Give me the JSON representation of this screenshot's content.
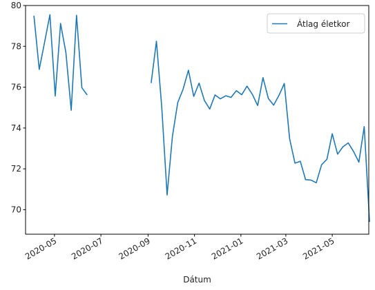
{
  "chart_data": {
    "type": "line",
    "title": "",
    "xlabel": "Dátum",
    "ylabel": "",
    "legend_position": "top-right",
    "grid": false,
    "xlim": [
      "2020-03-24",
      "2021-06-18"
    ],
    "ylim": [
      68.8,
      80.0
    ],
    "x_ticks": [
      "2020-05-01",
      "2020-07-01",
      "2020-09-01",
      "2020-11-01",
      "2021-01-01",
      "2021-03-01",
      "2021-05-01"
    ],
    "x_tick_labels": [
      "2020-05",
      "2020-07",
      "2020-09",
      "2020-11",
      "2021-01",
      "2021-03",
      "2021-05"
    ],
    "y_ticks": [
      70,
      72,
      74,
      76,
      78,
      80
    ],
    "y_tick_labels": [
      "70",
      "72",
      "74",
      "76",
      "78",
      "80"
    ],
    "series": [
      {
        "name": "Átlag életkor",
        "color": "#1f77b4",
        "points": [
          [
            "2020-04-04",
            79.5
          ],
          [
            "2020-04-11",
            76.87
          ],
          [
            "2020-04-18",
            78.2
          ],
          [
            "2020-04-25",
            79.55
          ],
          [
            "2020-05-02",
            75.57
          ],
          [
            "2020-05-09",
            79.12
          ],
          [
            "2020-05-16",
            77.7
          ],
          [
            "2020-05-23",
            74.87
          ],
          [
            "2020-05-30",
            79.52
          ],
          [
            "2020-06-06",
            75.97
          ],
          [
            "2020-06-13",
            75.62
          ],
          [
            "2020-06-20",
            null
          ],
          [
            "2020-08-29",
            null
          ],
          [
            "2020-09-05",
            76.2
          ],
          [
            "2020-09-12",
            78.25
          ],
          [
            "2020-09-19",
            75.0
          ],
          [
            "2020-09-26",
            70.72
          ],
          [
            "2020-10-03",
            73.6
          ],
          [
            "2020-10-10",
            75.25
          ],
          [
            "2020-10-17",
            75.9
          ],
          [
            "2020-10-24",
            76.83
          ],
          [
            "2020-10-31",
            75.55
          ],
          [
            "2020-11-07",
            76.2
          ],
          [
            "2020-11-14",
            75.35
          ],
          [
            "2020-11-21",
            74.93
          ],
          [
            "2020-11-28",
            75.62
          ],
          [
            "2020-12-05",
            75.43
          ],
          [
            "2020-12-12",
            75.58
          ],
          [
            "2020-12-19",
            75.5
          ],
          [
            "2020-12-26",
            75.83
          ],
          [
            "2021-01-02",
            75.63
          ],
          [
            "2021-01-09",
            76.05
          ],
          [
            "2021-01-16",
            75.65
          ],
          [
            "2021-01-23",
            75.1
          ],
          [
            "2021-01-30",
            76.47
          ],
          [
            "2021-02-06",
            75.45
          ],
          [
            "2021-02-13",
            75.12
          ],
          [
            "2021-02-20",
            75.6
          ],
          [
            "2021-02-27",
            76.18
          ],
          [
            "2021-03-06",
            73.47
          ],
          [
            "2021-03-13",
            72.28
          ],
          [
            "2021-03-20",
            72.37
          ],
          [
            "2021-03-27",
            71.47
          ],
          [
            "2021-04-03",
            71.45
          ],
          [
            "2021-04-10",
            71.32
          ],
          [
            "2021-04-17",
            72.2
          ],
          [
            "2021-04-24",
            72.47
          ],
          [
            "2021-05-01",
            73.72
          ],
          [
            "2021-05-08",
            72.72
          ],
          [
            "2021-05-15",
            73.08
          ],
          [
            "2021-05-22",
            73.27
          ],
          [
            "2021-05-29",
            72.85
          ],
          [
            "2021-06-05",
            72.33
          ],
          [
            "2021-06-12",
            74.07
          ],
          [
            "2021-06-19",
            69.4
          ]
        ]
      }
    ]
  }
}
